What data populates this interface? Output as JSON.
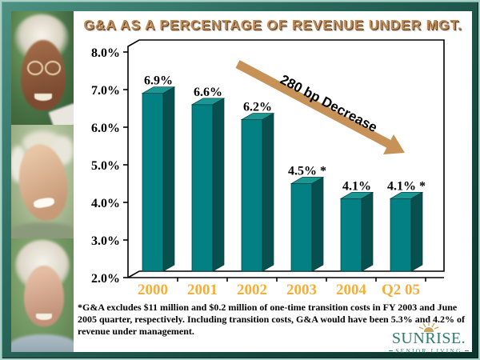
{
  "slide": {
    "title": "G&A AS A PERCENTAGE OF REVENUE UNDER MGT.",
    "footnote": "*G&A excludes $11 million and $0.2 million of one-time transition costs in FY 2003 and June 2005 quarter, respectively. Including transition costs, G&A would have been 5.3% and 4.2% of revenue under management."
  },
  "chart_data": {
    "type": "bar",
    "title": "G&A AS A PERCENTAGE OF REVENUE UNDER MGT.",
    "categories": [
      "2000",
      "2001",
      "2002",
      "2003",
      "2004",
      "Q2 05"
    ],
    "values": [
      6.9,
      6.6,
      6.2,
      4.5,
      4.1,
      4.1
    ],
    "bar_labels": [
      "6.9%",
      "6.6%",
      "6.2%",
      "4.5% *",
      "4.1%",
      "4.1% *"
    ],
    "y_ticks": [
      "8.0%",
      "7.0%",
      "6.0%",
      "5.0%",
      "4.0%",
      "3.0%",
      "2.0%"
    ],
    "ylim": [
      2.0,
      8.0
    ],
    "xlabel": "",
    "ylabel": "",
    "grid": false,
    "legend": false,
    "annotation": "280 bp Decrease",
    "style": "3d-column",
    "colors": {
      "bar_front": "#028083",
      "bar_side": "#06504f",
      "bar_top": "#1a9693",
      "x_label": "#f5ae38",
      "arrow": "#c79257",
      "axis": "#000000"
    }
  },
  "logo": {
    "name": "SUNRISE.",
    "subtitle": "SENIOR LIVING",
    "color": "#2f7a6b"
  },
  "photos": [
    {
      "name": "elderly-woman-with-glasses"
    },
    {
      "name": "elderly-man-smiling"
    },
    {
      "name": "elderly-woman-white-hair"
    }
  ]
}
